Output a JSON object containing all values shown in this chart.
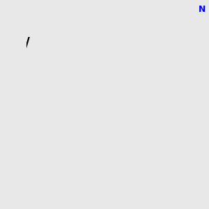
{
  "background_color": "#e8e8e8",
  "bond_color": "#000000",
  "atom_colors": {
    "N": "#0000ee",
    "O": "#ff0000",
    "S": "#ccaa00",
    "Cl": "#00aa00",
    "C": "#000000"
  },
  "figsize": [
    3.0,
    3.0
  ],
  "dpi": 100,
  "lw": 1.6,
  "lw_ph": 1.5,
  "fs": 9.0,
  "fs_cl": 9.0,
  "xlim": [
    -3.5,
    3.8
  ],
  "ylim": [
    -3.2,
    3.0
  ]
}
